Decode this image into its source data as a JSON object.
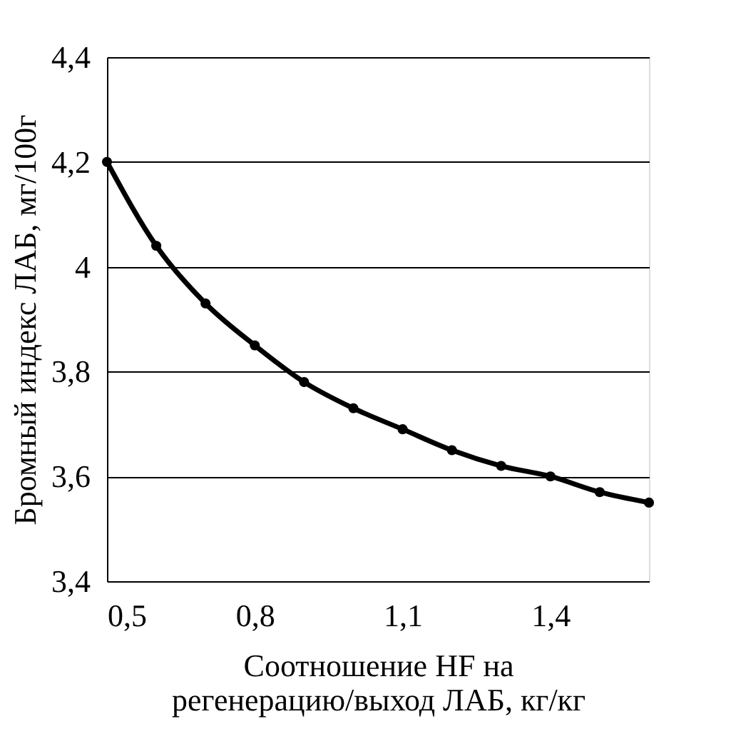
{
  "chart_data": {
    "type": "line",
    "xlabel": "Соотношение HF на\nрегенерацию/выход ЛАБ, кг/кг",
    "ylabel": "Бромный индекс ЛАБ, мг/100г",
    "x": [
      0.5,
      0.6,
      0.7,
      0.8,
      0.9,
      1.0,
      1.1,
      1.2,
      1.3,
      1.4,
      1.5,
      1.6
    ],
    "series": [
      {
        "color": "#000000",
        "values": [
          4.2,
          4.04,
          3.93,
          3.85,
          3.78,
          3.73,
          3.69,
          3.65,
          3.62,
          3.6,
          3.57,
          3.55
        ]
      }
    ],
    "xlim": [
      0.5,
      1.6
    ],
    "xticks": [
      {
        "value": 0.5,
        "label": "0,5"
      },
      {
        "value": 0.8,
        "label": "0,8"
      },
      {
        "value": 1.1,
        "label": "1,1"
      },
      {
        "value": 1.4,
        "label": "1,4"
      }
    ],
    "ylim": [
      3.4,
      4.4
    ],
    "yticks": [
      {
        "value": 3.4,
        "label": "3,4"
      },
      {
        "value": 3.6,
        "label": "3,6"
      },
      {
        "value": 3.8,
        "label": "3,8"
      },
      {
        "value": 4.0,
        "label": "4"
      },
      {
        "value": 4.2,
        "label": "4,2"
      },
      {
        "value": 4.4,
        "label": "4,4"
      }
    ],
    "grid": "y",
    "marker": "circle",
    "line_style": "solid"
  }
}
